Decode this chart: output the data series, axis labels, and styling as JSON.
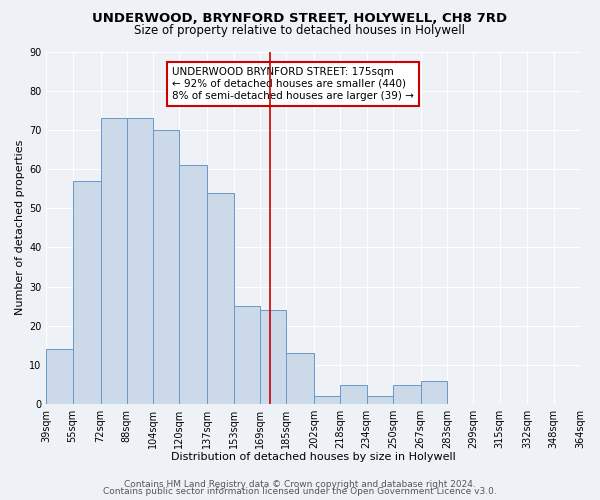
{
  "title": "UNDERWOOD, BRYNFORD STREET, HOLYWELL, CH8 7RD",
  "subtitle": "Size of property relative to detached houses in Holywell",
  "xlabel": "Distribution of detached houses by size in Holywell",
  "ylabel": "Number of detached properties",
  "bar_color": "#ccd9e8",
  "bar_edge_color": "#6699cc",
  "bins": [
    39,
    55,
    72,
    88,
    104,
    120,
    137,
    153,
    169,
    185,
    202,
    218,
    234,
    250,
    267,
    283,
    299,
    315,
    332,
    348,
    364
  ],
  "bin_labels": [
    "39sqm",
    "55sqm",
    "72sqm",
    "88sqm",
    "104sqm",
    "120sqm",
    "137sqm",
    "153sqm",
    "169sqm",
    "185sqm",
    "202sqm",
    "218sqm",
    "234sqm",
    "250sqm",
    "267sqm",
    "283sqm",
    "299sqm",
    "315sqm",
    "332sqm",
    "348sqm",
    "364sqm"
  ],
  "counts": [
    14,
    57,
    73,
    73,
    70,
    61,
    54,
    25,
    24,
    13,
    2,
    5,
    2,
    5,
    6,
    0,
    0,
    0,
    0,
    0
  ],
  "property_size": 175,
  "vline_color": "#cc0000",
  "annotation_line1": "UNDERWOOD BRYNFORD STREET: 175sqm",
  "annotation_line2": "← 92% of detached houses are smaller (440)",
  "annotation_line3": "8% of semi-detached houses are larger (39) →",
  "annotation_box_color": "white",
  "annotation_box_edge_color": "#cc0000",
  "ylim": [
    0,
    90
  ],
  "yticks": [
    0,
    10,
    20,
    30,
    40,
    50,
    60,
    70,
    80,
    90
  ],
  "background_color": "#eef2f7",
  "grid_color": "white",
  "footer_line1": "Contains HM Land Registry data © Crown copyright and database right 2024.",
  "footer_line2": "Contains public sector information licensed under the Open Government Licence v3.0.",
  "title_fontsize": 9.5,
  "subtitle_fontsize": 8.5,
  "axis_label_fontsize": 8,
  "tick_fontsize": 7,
  "annotation_fontsize": 7.5,
  "footer_fontsize": 6.5
}
